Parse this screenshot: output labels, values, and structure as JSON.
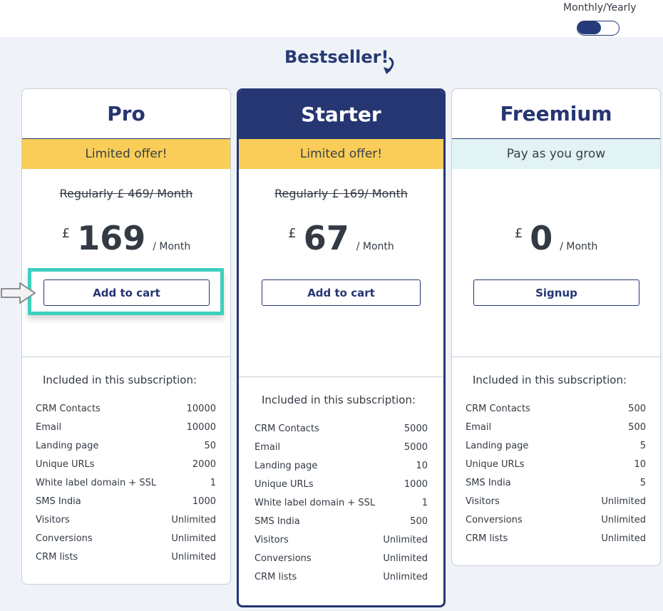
{
  "billing_toggle": {
    "label": "Monthly/Yearly",
    "state": "monthly"
  },
  "bestseller_label": "Bestseller!",
  "plans": [
    {
      "name": "Pro",
      "banner": "Limited offer!",
      "regular_price": "Regularly £ 469/ Month",
      "currency": "£",
      "price": "169",
      "period": "/ Month",
      "cta": "Add to cart",
      "included_title": "Included in this subscription:",
      "features": [
        {
          "label": "CRM Contacts",
          "value": "10000"
        },
        {
          "label": "Email",
          "value": "10000"
        },
        {
          "label": "Landing page",
          "value": "50"
        },
        {
          "label": "Unique URLs",
          "value": "2000"
        },
        {
          "label": "White label domain + SSL",
          "value": "1"
        },
        {
          "label": "SMS India",
          "value": "1000"
        },
        {
          "label": "Visitors",
          "value": "Unlimited"
        },
        {
          "label": "Conversions",
          "value": "Unlimited"
        },
        {
          "label": "CRM lists",
          "value": "Unlimited"
        }
      ]
    },
    {
      "name": "Starter",
      "banner": "Limited offer!",
      "regular_price": "Regularly £ 169/ Month",
      "currency": "£",
      "price": "67",
      "period": "/ Month",
      "cta": "Add to cart",
      "included_title": "Included in this subscription:",
      "features": [
        {
          "label": "CRM Contacts",
          "value": "5000"
        },
        {
          "label": "Email",
          "value": "5000"
        },
        {
          "label": "Landing page",
          "value": "10"
        },
        {
          "label": "Unique URLs",
          "value": "1000"
        },
        {
          "label": "White label domain + SSL",
          "value": "1"
        },
        {
          "label": "SMS India",
          "value": "500"
        },
        {
          "label": "Visitors",
          "value": "Unlimited"
        },
        {
          "label": "Conversions",
          "value": "Unlimited"
        },
        {
          "label": "CRM lists",
          "value": "Unlimited"
        }
      ]
    },
    {
      "name": "Freemium",
      "banner": "Pay as you grow",
      "currency": "£",
      "price": "0",
      "period": "/ Month",
      "cta": "Signup",
      "included_title": "Included in this subscription:",
      "features": [
        {
          "label": "CRM Contacts",
          "value": "500"
        },
        {
          "label": "Email",
          "value": "500"
        },
        {
          "label": "Landing page",
          "value": "5"
        },
        {
          "label": "Unique URLs",
          "value": "10"
        },
        {
          "label": "SMS India",
          "value": "5"
        },
        {
          "label": "Visitors",
          "value": "Unlimited"
        },
        {
          "label": "Conversions",
          "value": "Unlimited"
        },
        {
          "label": "CRM lists",
          "value": "Unlimited"
        }
      ]
    }
  ],
  "colors": {
    "navy": "#253672",
    "offer_yellow": "#f9cd58",
    "free_banner": "#e1f3f3",
    "highlight": "#3ecfbd",
    "background": "#eff3f8"
  }
}
